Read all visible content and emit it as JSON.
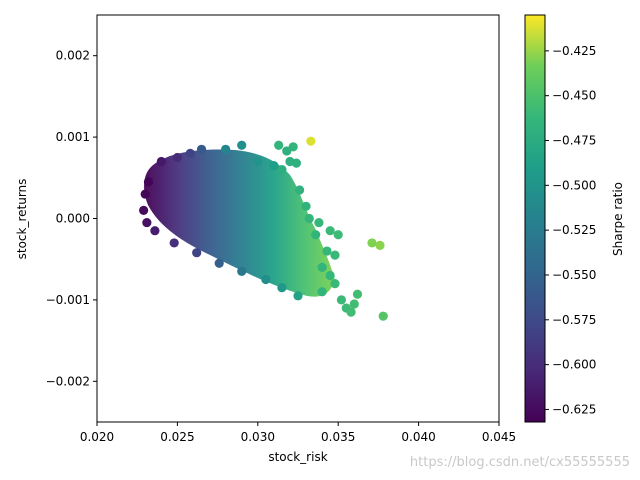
{
  "chart_data": {
    "type": "scatter",
    "xlabel": "stock_risk",
    "ylabel": "stock_returns",
    "xlim": [
      0.02,
      0.045
    ],
    "ylim": [
      -0.0025,
      0.0025
    ],
    "x_ticks": [
      "0.020",
      "0.025",
      "0.030",
      "0.035",
      "0.040",
      "0.045"
    ],
    "y_ticks": [
      "−0.002",
      "−0.001",
      "0.000",
      "0.001",
      "0.002"
    ],
    "colorbar": {
      "label": "Sharpe ratio",
      "range": [
        -0.632,
        -0.405
      ],
      "colormap": "viridis",
      "ticks": [
        "−0.625",
        "−0.600",
        "−0.575",
        "−0.550",
        "−0.525",
        "−0.500",
        "−0.475",
        "−0.450",
        "−0.425"
      ]
    },
    "points": [
      {
        "x": 0.0232,
        "y": 0.00045,
        "c": -0.63
      },
      {
        "x": 0.023,
        "y": 0.0003,
        "c": -0.628
      },
      {
        "x": 0.0229,
        "y": 0.0001,
        "c": -0.625
      },
      {
        "x": 0.0231,
        "y": -5e-05,
        "c": -0.62
      },
      {
        "x": 0.0236,
        "y": -0.00015,
        "c": -0.612
      },
      {
        "x": 0.024,
        "y": 0.0007,
        "c": -0.615
      },
      {
        "x": 0.025,
        "y": 0.00075,
        "c": -0.6
      },
      {
        "x": 0.0258,
        "y": 0.0008,
        "c": -0.58
      },
      {
        "x": 0.0265,
        "y": 0.00085,
        "c": -0.56
      },
      {
        "x": 0.0248,
        "y": -0.0003,
        "c": -0.598
      },
      {
        "x": 0.0262,
        "y": -0.00042,
        "c": -0.58
      },
      {
        "x": 0.0276,
        "y": -0.00055,
        "c": -0.555
      },
      {
        "x": 0.029,
        "y": -0.00065,
        "c": -0.53
      },
      {
        "x": 0.028,
        "y": 0.00085,
        "c": -0.515
      },
      {
        "x": 0.029,
        "y": 0.0009,
        "c": -0.505
      },
      {
        "x": 0.03,
        "y": 0.0007,
        "c": -0.5
      },
      {
        "x": 0.031,
        "y": 0.00065,
        "c": -0.49
      },
      {
        "x": 0.0305,
        "y": -0.00075,
        "c": -0.505
      },
      {
        "x": 0.0315,
        "y": -0.00085,
        "c": -0.495
      },
      {
        "x": 0.0325,
        "y": -0.00095,
        "c": -0.485
      },
      {
        "x": 0.0313,
        "y": 0.0009,
        "c": -0.465
      },
      {
        "x": 0.0322,
        "y": 0.00088,
        "c": -0.465
      },
      {
        "x": 0.0318,
        "y": 0.00083,
        "c": -0.47
      },
      {
        "x": 0.0333,
        "y": 0.00095,
        "c": -0.412
      },
      {
        "x": 0.032,
        "y": 0.0007,
        "c": -0.47
      },
      {
        "x": 0.0324,
        "y": 0.00068,
        "c": -0.47
      },
      {
        "x": 0.0315,
        "y": 0.0006,
        "c": -0.472
      },
      {
        "x": 0.0326,
        "y": 0.00035,
        "c": -0.468
      },
      {
        "x": 0.033,
        "y": 0.00015,
        "c": -0.466
      },
      {
        "x": 0.0332,
        "y": 0.0,
        "c": -0.465
      },
      {
        "x": 0.0338,
        "y": -5e-05,
        "c": -0.462
      },
      {
        "x": 0.0345,
        "y": -0.00015,
        "c": -0.46
      },
      {
        "x": 0.035,
        "y": -0.0002,
        "c": -0.458
      },
      {
        "x": 0.0336,
        "y": -0.0002,
        "c": -0.465
      },
      {
        "x": 0.0343,
        "y": -0.0004,
        "c": -0.462
      },
      {
        "x": 0.0348,
        "y": -0.00045,
        "c": -0.46
      },
      {
        "x": 0.034,
        "y": -0.0006,
        "c": -0.465
      },
      {
        "x": 0.0345,
        "y": -0.0007,
        "c": -0.462
      },
      {
        "x": 0.0348,
        "y": -0.0008,
        "c": -0.46
      },
      {
        "x": 0.034,
        "y": -0.0009,
        "c": -0.465
      },
      {
        "x": 0.0352,
        "y": -0.001,
        "c": -0.46
      },
      {
        "x": 0.0355,
        "y": -0.0011,
        "c": -0.458
      },
      {
        "x": 0.0358,
        "y": -0.00115,
        "c": -0.456
      },
      {
        "x": 0.036,
        "y": -0.00105,
        "c": -0.456
      },
      {
        "x": 0.0362,
        "y": -0.00093,
        "c": -0.455
      },
      {
        "x": 0.0371,
        "y": -0.0003,
        "c": -0.43
      },
      {
        "x": 0.0376,
        "y": -0.00033,
        "c": -0.428
      },
      {
        "x": 0.0378,
        "y": -0.0012,
        "c": -0.446
      }
    ]
  },
  "watermark": "https://blog.csdn.net/cx55555555"
}
